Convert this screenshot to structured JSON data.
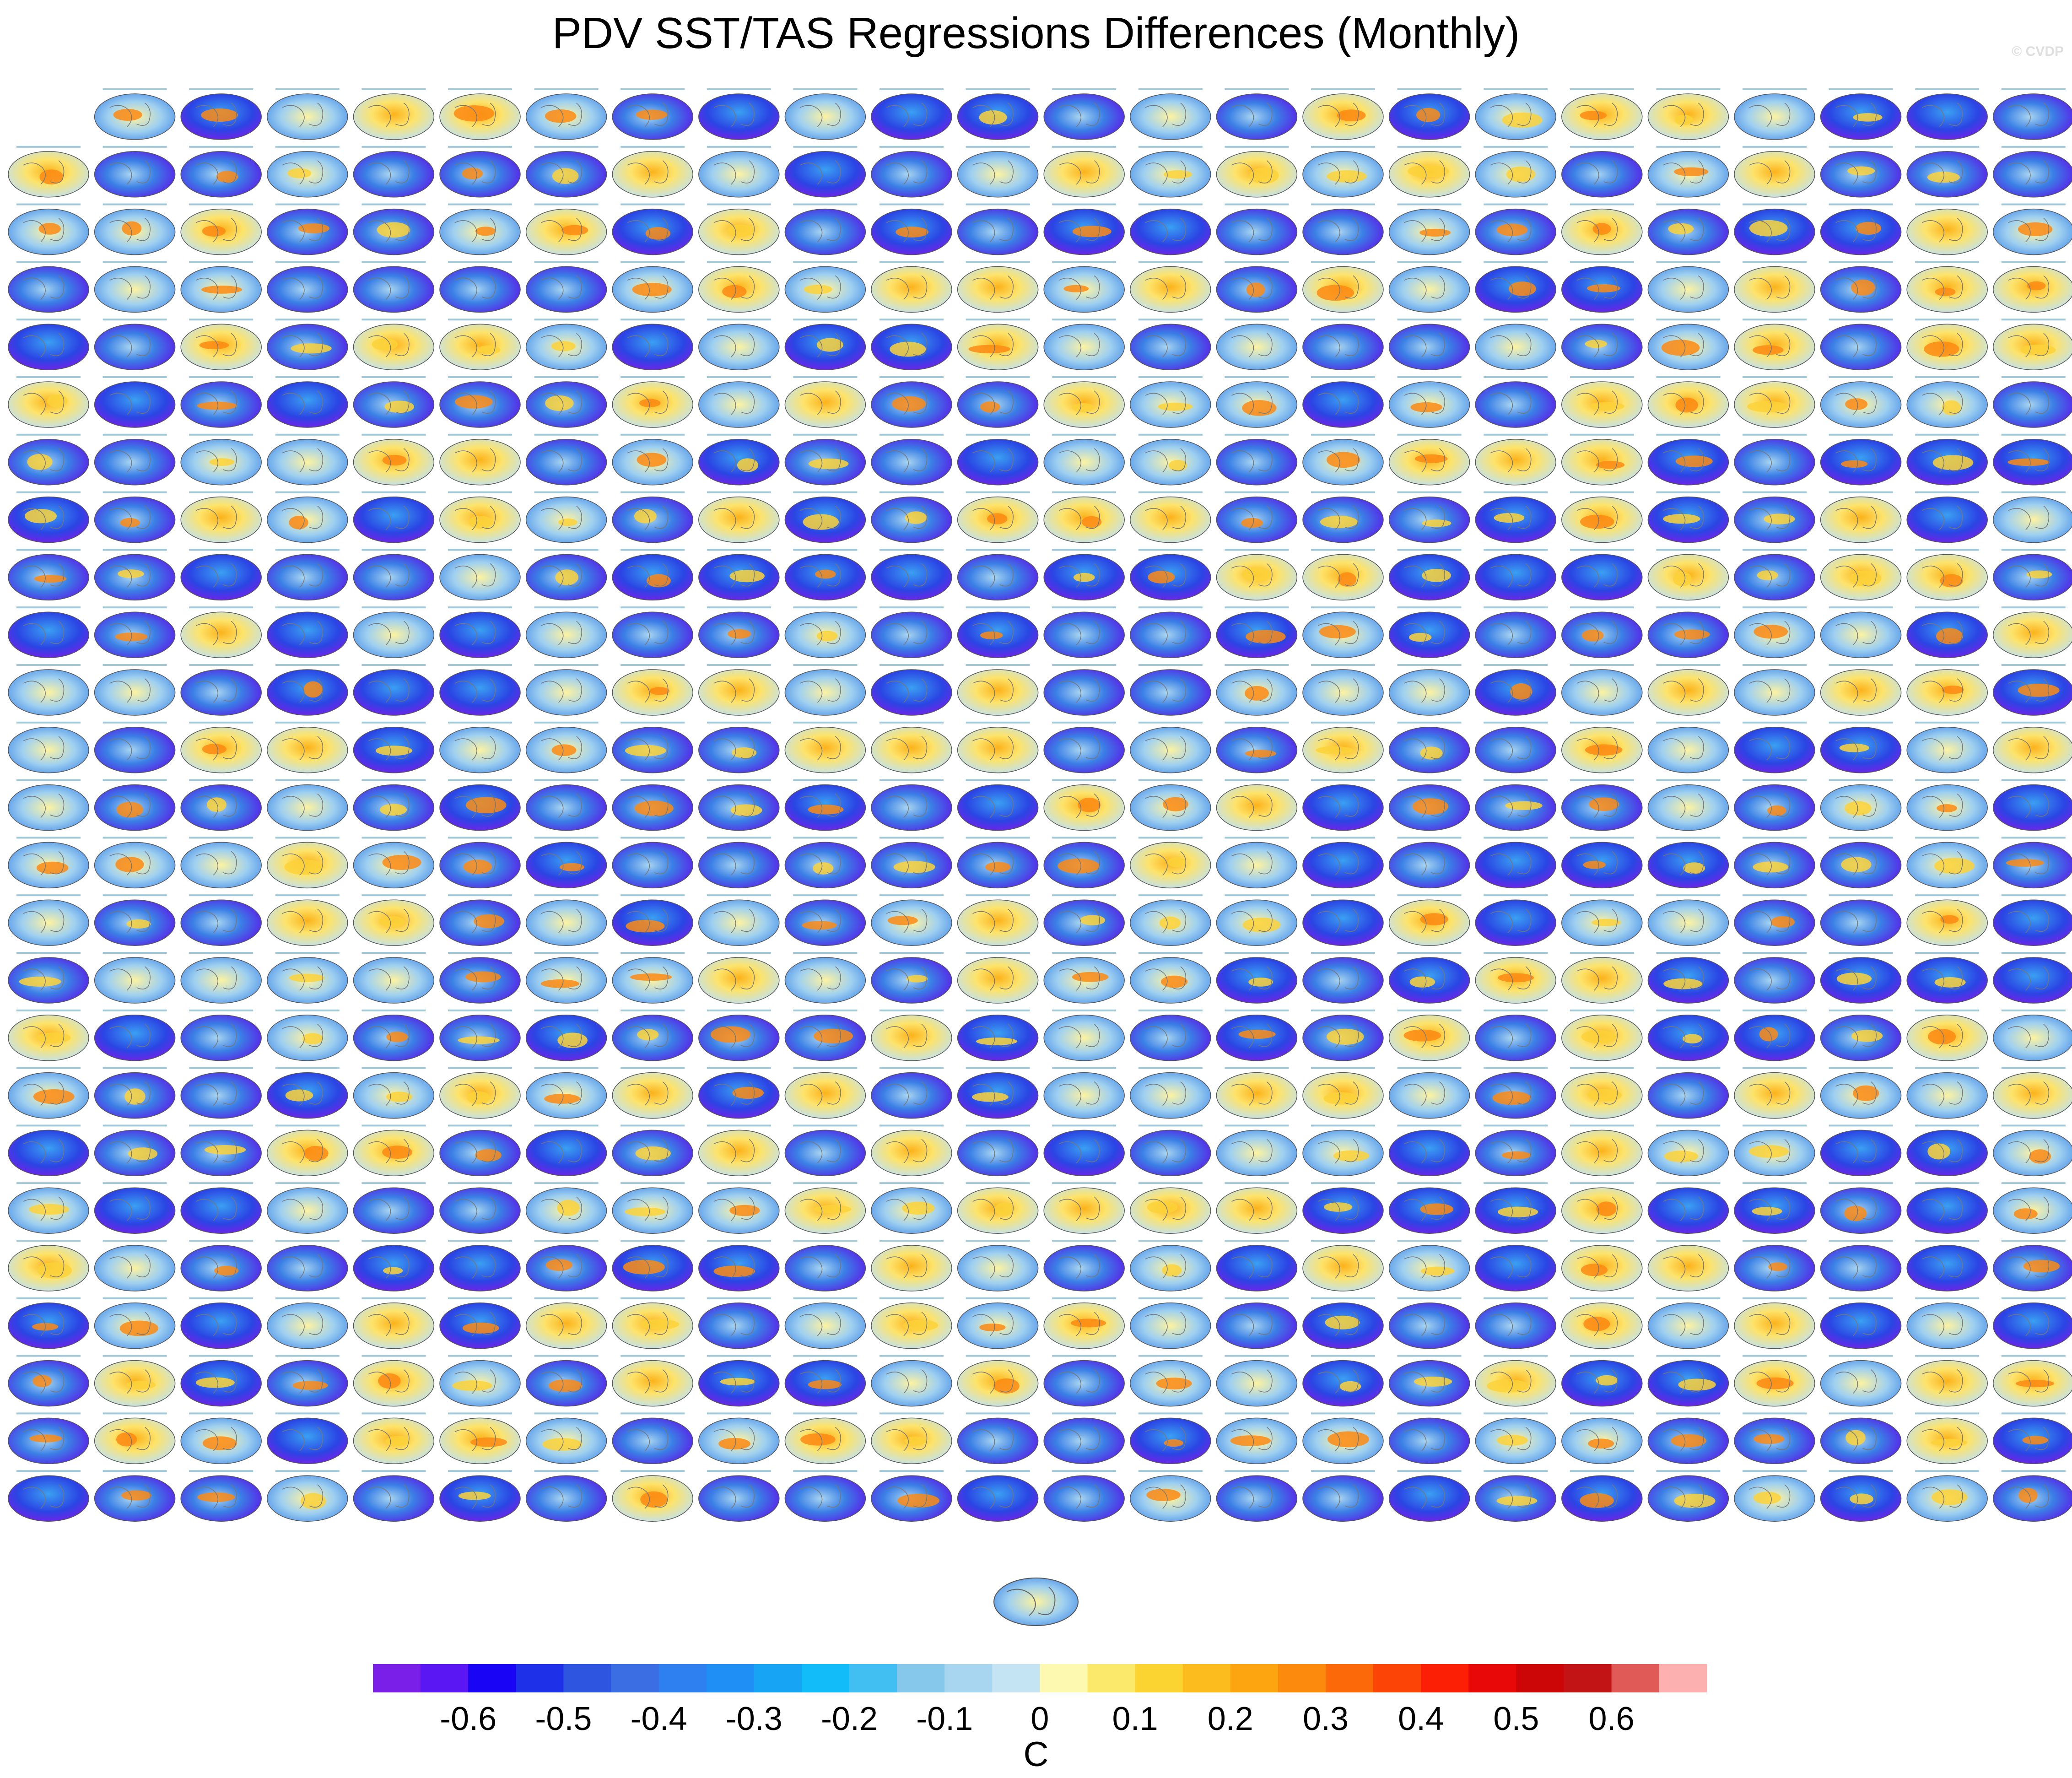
{
  "title": "PDV SST/TAS Regressions Differences (Monthly)",
  "credit": "© CVDP",
  "panel_grid": {
    "rows": 25,
    "columns": 24,
    "first_row_columns": 23,
    "extra_bottom_panel": true,
    "panel_subtitle": "tiny unreadable text"
  },
  "colorbar": {
    "unit": "C",
    "colors": [
      "#7a1fe8",
      "#5a16f3",
      "#1a04f6",
      "#1e30e8",
      "#2e55e0",
      "#3a6ee2",
      "#2e7ff0",
      "#1f8ff6",
      "#18a4f5",
      "#12bcf8",
      "#42bff2",
      "#86c8ec",
      "#a8d5f0",
      "#c4e4f4",
      "#fdf9b0",
      "#fbe96c",
      "#fbd432",
      "#fcbc1e",
      "#fca511",
      "#fc8a0c",
      "#fb6908",
      "#fc4407",
      "#fc1e05",
      "#e80808",
      "#cc0606",
      "#c21414",
      "#e05a58",
      "#fcb0b0"
    ],
    "tick_labels": [
      "-0.6",
      "-0.5",
      "-0.4",
      "-0.3",
      "-0.2",
      "-0.1",
      "0",
      "0.1",
      "0.2",
      "0.3",
      "0.4",
      "0.5",
      "0.6"
    ]
  }
}
